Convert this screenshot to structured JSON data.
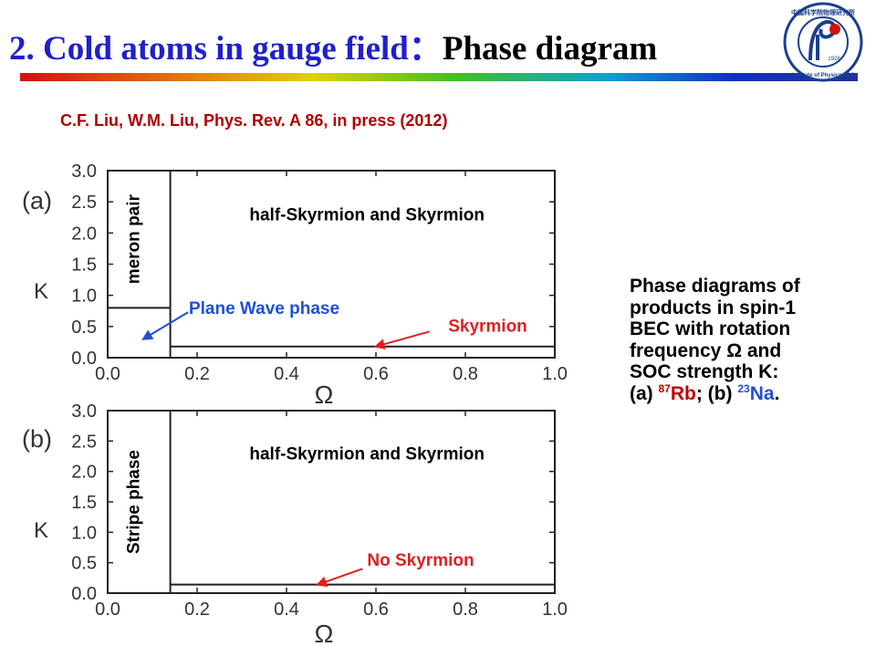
{
  "slide": {
    "title_part1": "2. Cold atoms in gauge field：",
    "title_part2": "Phase diagram",
    "citation": "C.F. Liu, W.M. Liu, Phys. Rev. A 86, in press (2012)",
    "logo_text": "中国科学院物理研究所 · Institute of Physics CAS",
    "logo_year": "1928"
  },
  "caption": {
    "line1": "Phase diagrams of",
    "line2": "products in spin-1",
    "line3": "BEC with rotation",
    "line4": "frequency Ω and",
    "line5": "SOC strength K:",
    "label_a": "(a) ",
    "sup_a": "87",
    "elem_a": "Rb",
    "sep": "; (b) ",
    "sup_b": "23",
    "elem_b": "Na",
    "end": "."
  },
  "colors": {
    "title_blue": "#1f1fd0",
    "citation_red": "#b00000",
    "arrow_red": "#e02020",
    "arrow_blue": "#1f4fd8"
  },
  "chart_data": [
    {
      "type": "area",
      "panel_label": "(a)",
      "xlabel": "Ω",
      "ylabel": "K",
      "xlim": [
        0.0,
        1.0
      ],
      "ylim": [
        0.0,
        3.0
      ],
      "xticks": [
        "0.0",
        "0.2",
        "0.4",
        "0.6",
        "0.8",
        "1.0"
      ],
      "yticks": [
        "0.0",
        "0.5",
        "1.0",
        "1.5",
        "2.0",
        "2.5",
        "3.0"
      ],
      "boundaries": [
        {
          "name": "vertical",
          "x": [
            0.14,
            0.14
          ],
          "y": [
            0.0,
            3.0
          ]
        },
        {
          "name": "left-horizontal",
          "x": [
            0.0,
            0.14
          ],
          "y": [
            0.8,
            0.8
          ]
        },
        {
          "name": "right-horizontal",
          "x": [
            0.14,
            1.0
          ],
          "y": [
            0.18,
            0.18
          ]
        }
      ],
      "regions": [
        {
          "label": "meron pair",
          "x": 0.07,
          "y": 1.9,
          "rotate": true,
          "color": "#000000"
        },
        {
          "label": "half-Skyrmion and Skyrmion",
          "x": 0.58,
          "y": 2.2,
          "rotate": false,
          "color": "#000000"
        },
        {
          "label": "Plane Wave phase",
          "x": 0.35,
          "y": 0.7,
          "rotate": false,
          "color": "#1f4fd8"
        },
        {
          "label": "Skyrmion",
          "x": 0.85,
          "y": 0.42,
          "rotate": false,
          "color": "#e02020"
        }
      ],
      "arrows": [
        {
          "from": [
            0.18,
            0.73
          ],
          "to": [
            0.08,
            0.3
          ],
          "color": "#1f4fd8"
        },
        {
          "from": [
            0.72,
            0.42
          ],
          "to": [
            0.6,
            0.18
          ],
          "color": "#e02020"
        }
      ]
    },
    {
      "type": "area",
      "panel_label": "(b)",
      "xlabel": "Ω",
      "ylabel": "K",
      "xlim": [
        0.0,
        1.0
      ],
      "ylim": [
        0.0,
        3.0
      ],
      "xticks": [
        "0.0",
        "0.2",
        "0.4",
        "0.6",
        "0.8",
        "1.0"
      ],
      "yticks": [
        "0.0",
        "0.5",
        "1.0",
        "1.5",
        "2.0",
        "2.5",
        "3.0"
      ],
      "boundaries": [
        {
          "name": "vertical",
          "x": [
            0.14,
            0.14
          ],
          "y": [
            0.0,
            3.0
          ]
        },
        {
          "name": "right-horizontal",
          "x": [
            0.14,
            1.0
          ],
          "y": [
            0.14,
            0.14
          ]
        }
      ],
      "regions": [
        {
          "label": "Stripe phase",
          "x": 0.07,
          "y": 1.5,
          "rotate": true,
          "color": "#000000"
        },
        {
          "label": "half-Skyrmion and Skyrmion",
          "x": 0.58,
          "y": 2.2,
          "rotate": false,
          "color": "#000000"
        },
        {
          "label": "No Skyrmion",
          "x": 0.7,
          "y": 0.45,
          "rotate": false,
          "color": "#e02020"
        }
      ],
      "arrows": [
        {
          "from": [
            0.57,
            0.4
          ],
          "to": [
            0.47,
            0.14
          ],
          "color": "#e02020"
        }
      ]
    }
  ]
}
